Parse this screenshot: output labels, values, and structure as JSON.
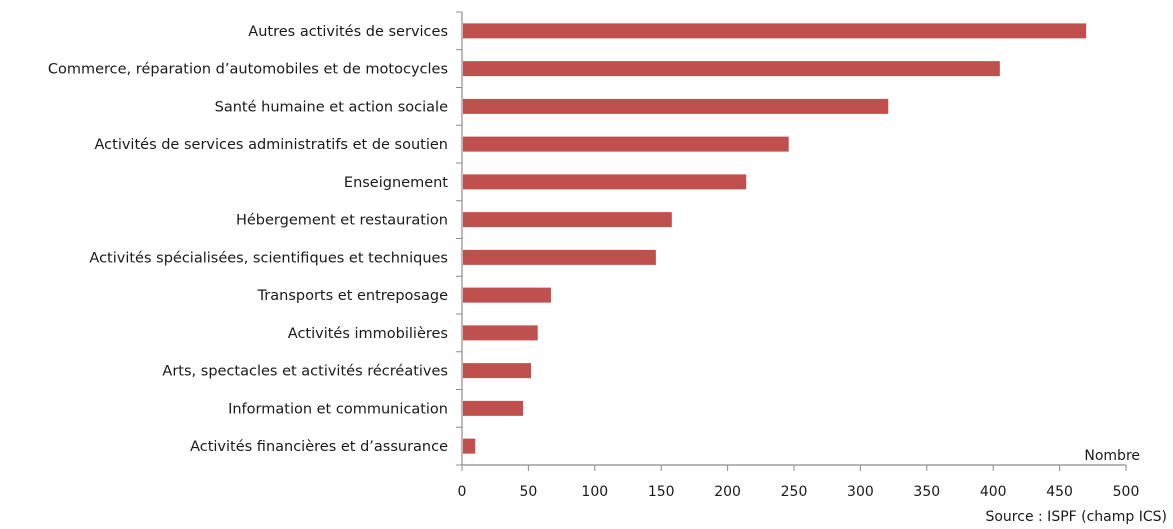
{
  "chart_data": {
    "type": "bar",
    "orientation": "horizontal",
    "categories": [
      "Autres activités de services",
      "Commerce, réparation d’automobiles et de motocycles",
      "Santé humaine et action sociale",
      "Activités de services administratifs et de soutien",
      "Enseignement",
      "Hébergement et restauration",
      "Activités spécialisées, scientifiques et techniques",
      "Transports et entreposage",
      "Activités immobilières",
      "Arts, spectacles et activités récréatives",
      "Information et communication",
      "Activités financières et d’assurance"
    ],
    "values": [
      470,
      405,
      321,
      246,
      214,
      158,
      146,
      67,
      57,
      52,
      46,
      10
    ],
    "xlim": [
      0,
      500
    ],
    "xticks": [
      0,
      50,
      100,
      150,
      200,
      250,
      300,
      350,
      400,
      450,
      500
    ],
    "xlabel": "Nombre",
    "grid": false,
    "bar_color": "#c0504d",
    "axis_color": "#8c8c8c"
  },
  "source": "Source : ISPF (champ ICS)"
}
